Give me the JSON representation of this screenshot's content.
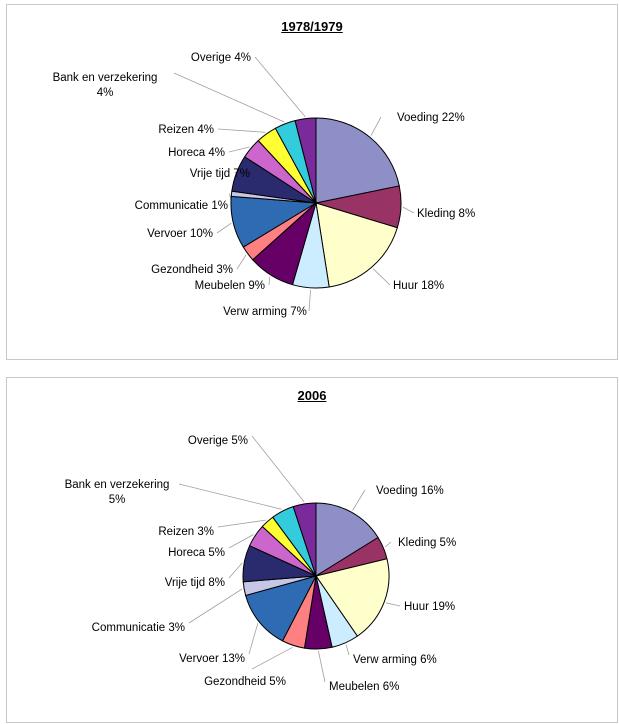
{
  "chart_data": [
    {
      "type": "pie",
      "title": "1978/1979",
      "slices": [
        {
          "label": "Voeding 22%",
          "value": 22,
          "color": "#8f8fc8"
        },
        {
          "label": "Kleding 8%",
          "value": 8,
          "color": "#993366"
        },
        {
          "label": "Huur 18%",
          "value": 18,
          "color": "#ffffcc"
        },
        {
          "label": "Verw arming 7%",
          "value": 7,
          "color": "#ccecff"
        },
        {
          "label": "Meubelen 9%",
          "value": 9,
          "color": "#660066"
        },
        {
          "label": "Gezondheid 3%",
          "value": 3,
          "color": "#ff8080"
        },
        {
          "label": "Vervoer 10%",
          "value": 10,
          "color": "#2e6bb3"
        },
        {
          "label": "Communicatie 1%",
          "value": 1,
          "color": "#c6c6e6"
        },
        {
          "label": "Vrije tijd 7%",
          "value": 7,
          "color": "#2a2a6e"
        },
        {
          "label": "Horeca 4%",
          "value": 4,
          "color": "#cc66cc"
        },
        {
          "label": "Reizen 4%",
          "value": 4,
          "color": "#ffff33"
        },
        {
          "label": [
            "Bank en verzekering",
            "4%"
          ],
          "value": 4,
          "color": "#33ccdd"
        },
        {
          "label": "Overige 4%",
          "value": 4,
          "color": "#7a2a9a"
        }
      ]
    },
    {
      "type": "pie",
      "title": "2006",
      "slices": [
        {
          "label": "Voeding 16%",
          "value": 16,
          "color": "#8f8fc8"
        },
        {
          "label": "Kleding 5%",
          "value": 5,
          "color": "#993366"
        },
        {
          "label": "Huur 19%",
          "value": 19,
          "color": "#ffffcc"
        },
        {
          "label": "Verw arming 6%",
          "value": 6,
          "color": "#ccecff"
        },
        {
          "label": "Meubelen 6%",
          "value": 6,
          "color": "#660066"
        },
        {
          "label": "Gezondheid 5%",
          "value": 5,
          "color": "#ff8080"
        },
        {
          "label": "Vervoer 13%",
          "value": 13,
          "color": "#2e6bb3"
        },
        {
          "label": "Communicatie 3%",
          "value": 3,
          "color": "#c6c6e6"
        },
        {
          "label": "Vrije tijd 8%",
          "value": 8,
          "color": "#2a2a6e"
        },
        {
          "label": "Horeca 5%",
          "value": 5,
          "color": "#cc66cc"
        },
        {
          "label": "Reizen 3%",
          "value": 3,
          "color": "#ffff33"
        },
        {
          "label": [
            "Bank en verzekering",
            "5%"
          ],
          "value": 5,
          "color": "#33ccdd"
        },
        {
          "label": "Overige 5%",
          "value": 5,
          "color": "#7a2a9a"
        }
      ]
    }
  ]
}
